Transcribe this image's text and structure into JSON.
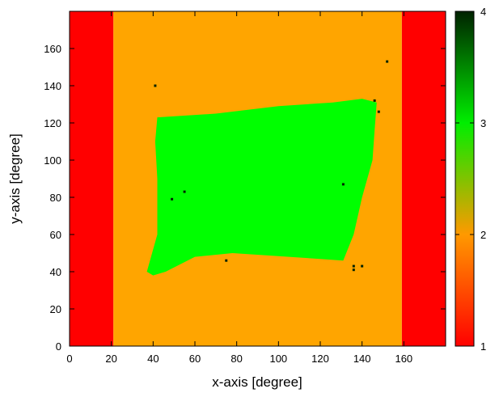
{
  "chart_data": {
    "type": "heatmap",
    "title": "",
    "xlabel": "x-axis [degree]",
    "ylabel": "y-axis [degree]",
    "xlim": [
      0,
      180
    ],
    "ylim": [
      0,
      180
    ],
    "grid": false,
    "x_ticks": [
      "0",
      "20",
      "40",
      "60",
      "80",
      "100",
      "120",
      "140",
      "160"
    ],
    "y_ticks": [
      "0",
      "20",
      "40",
      "60",
      "80",
      "100",
      "120",
      "140",
      "160"
    ],
    "colorbar": {
      "range": [
        1,
        4
      ],
      "ticks": [
        "1",
        "2",
        "3",
        "4"
      ],
      "colors": [
        {
          "value": 1,
          "color": "#ff0000"
        },
        {
          "value": 2,
          "color": "#ff9900"
        },
        {
          "value": 3,
          "color": "#00ee00"
        },
        {
          "value": 4,
          "color": "#002200"
        }
      ]
    },
    "regions": [
      {
        "name": "value 1",
        "value": 1,
        "color": "#ff0000",
        "x": [
          0,
          21
        ],
        "y": [
          0,
          180
        ]
      },
      {
        "name": "value 1",
        "value": 1,
        "color": "#ff0000",
        "x": [
          159,
          180
        ],
        "y": [
          0,
          180
        ]
      },
      {
        "name": "value 2",
        "value": 2,
        "color": "#ffa500",
        "x": [
          21,
          159
        ],
        "y": [
          0,
          180
        ]
      },
      {
        "name": "value 3",
        "value": 3,
        "color": "#00ff00",
        "polygon": [
          [
            42,
            123
          ],
          [
            70,
            125
          ],
          [
            100,
            129
          ],
          [
            126,
            131
          ],
          [
            140,
            133
          ],
          [
            147,
            131
          ],
          [
            146,
            116
          ],
          [
            145,
            100
          ],
          [
            140,
            80
          ],
          [
            136,
            60
          ],
          [
            131,
            46
          ],
          [
            105,
            48
          ],
          [
            78,
            50
          ],
          [
            60,
            48
          ],
          [
            46,
            40
          ],
          [
            40,
            38
          ],
          [
            37,
            40
          ],
          [
            42,
            60
          ],
          [
            42,
            90
          ],
          [
            41,
            110
          ]
        ]
      }
    ],
    "points": [
      {
        "x": 41,
        "y": 140,
        "value": 4
      },
      {
        "x": 152,
        "y": 153,
        "value": 4
      },
      {
        "x": 146,
        "y": 132,
        "value": 4
      },
      {
        "x": 148,
        "y": 126,
        "value": 4
      },
      {
        "x": 49,
        "y": 79,
        "value": 4
      },
      {
        "x": 55,
        "y": 83,
        "value": 4
      },
      {
        "x": 131,
        "y": 87,
        "value": 4
      },
      {
        "x": 75,
        "y": 46,
        "value": 4
      },
      {
        "x": 136,
        "y": 41,
        "value": 4
      },
      {
        "x": 136,
        "y": 43,
        "value": 4
      },
      {
        "x": 140,
        "y": 43,
        "value": 4
      }
    ]
  }
}
